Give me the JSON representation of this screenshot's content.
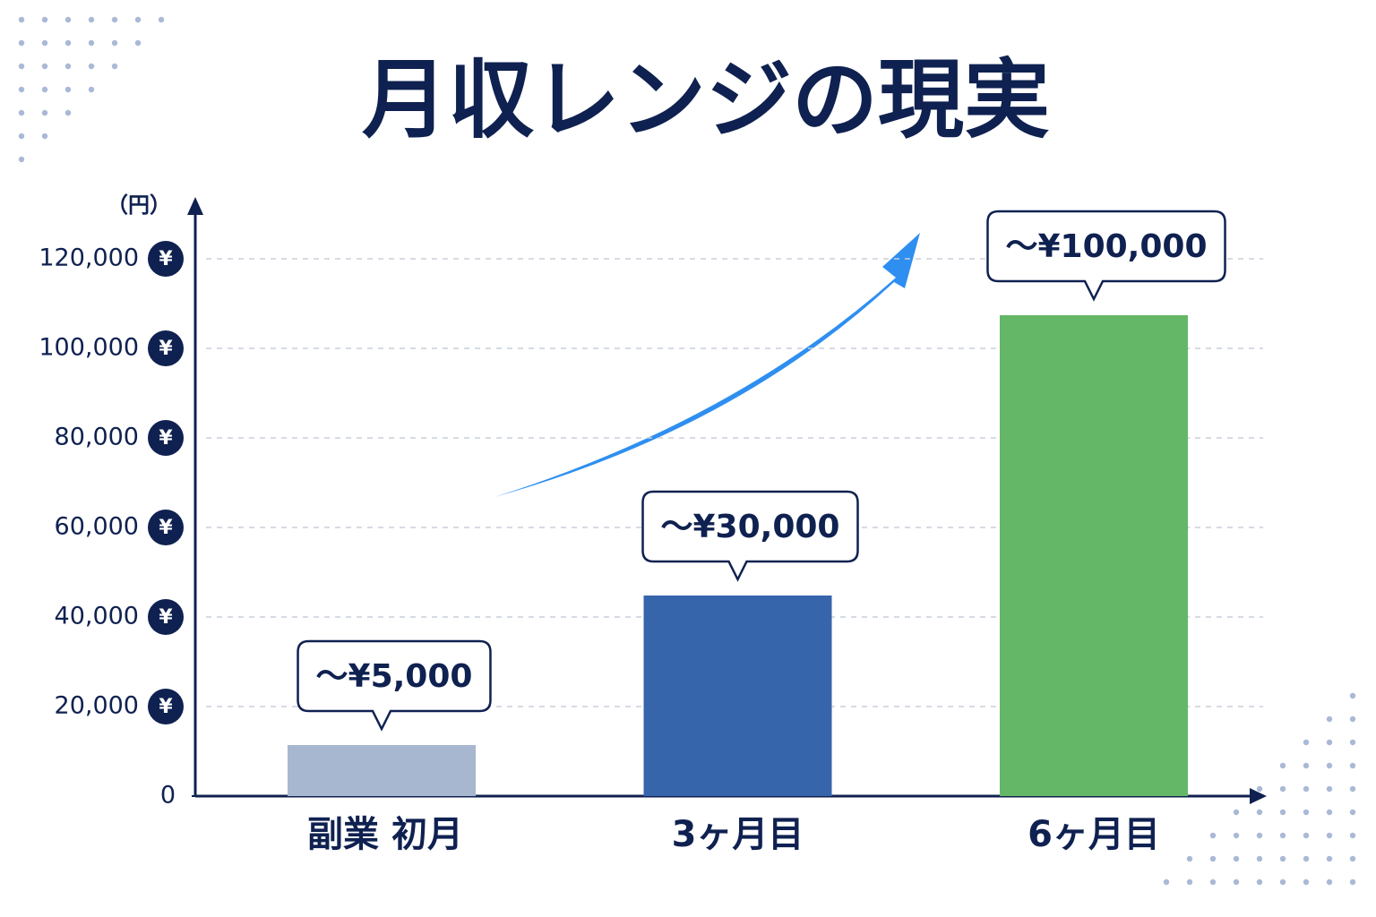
{
  "chart_data": {
    "type": "bar",
    "title": "月収レンジの現実",
    "y_unit": "（円）",
    "tick_icon": "¥",
    "categories": [
      "副業 初月",
      "3ヶ月目",
      "6ヶ月目"
    ],
    "values": [
      11400,
      44800,
      107400
    ],
    "colors": [
      "#a7b7cf",
      "#3765ac",
      "#64b767"
    ],
    "annotations": [
      "〜¥5,000",
      "〜¥30,000",
      "〜¥100,000"
    ],
    "ylim": [
      0,
      130000
    ],
    "yticks": [
      0,
      {
        "value": 20000,
        "label": "20,000"
      },
      {
        "value": 40000,
        "label": "40,000"
      },
      {
        "value": 60000,
        "label": "60,000"
      },
      {
        "value": 80000,
        "label": "80,000"
      },
      {
        "value": 100000,
        "label": "100,000"
      },
      {
        "value": 120000,
        "label": "120,000"
      }
    ],
    "grid": true
  }
}
